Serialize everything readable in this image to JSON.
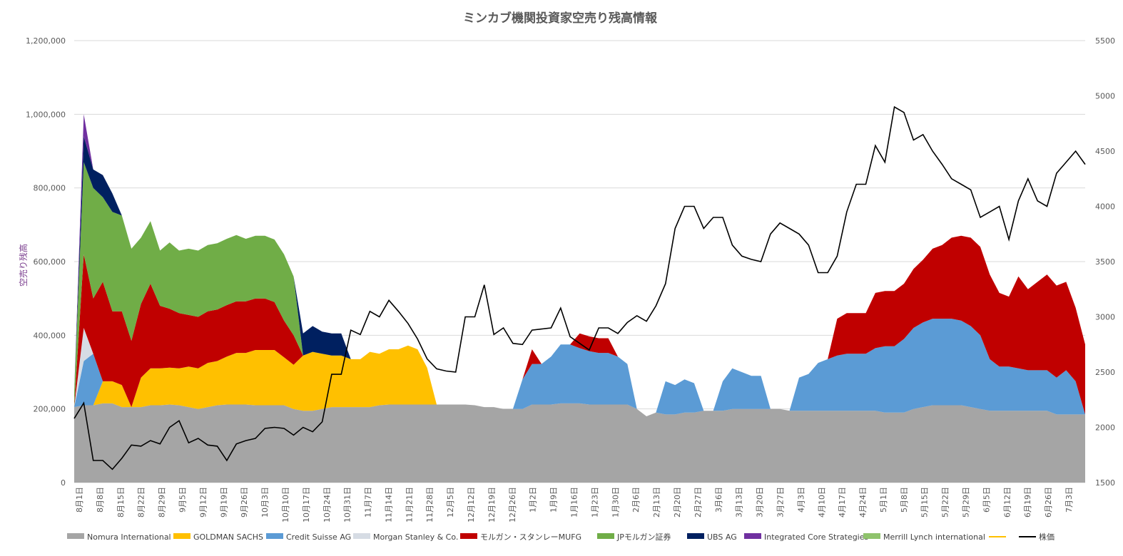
{
  "chart_data": {
    "type": "area",
    "title": "ミンカブ機関投資家空売り残高情報",
    "ylabel": "空売り残高",
    "y2label": "",
    "ylim": [
      0,
      1200000
    ],
    "y2lim": [
      1500,
      5500
    ],
    "yticks": [
      "0",
      "200,000",
      "400,000",
      "600,000",
      "800,000",
      "1,000,000",
      "1,200,000"
    ],
    "y2ticks": [
      "1500",
      "2000",
      "2500",
      "3000",
      "3500",
      "4000",
      "4500",
      "5000",
      "5500"
    ],
    "grid": true,
    "legend_position": "bottom",
    "x_tick_labels": [
      "8月1日",
      "8月8日",
      "8月15日",
      "8月22日",
      "8月29日",
      "9月5日",
      "9月12日",
      "9月19日",
      "9月26日",
      "10月3日",
      "10月10日",
      "10月17日",
      "10月24日",
      "10月31日",
      "11月7日",
      "11月14日",
      "11月21日",
      "11月28日",
      "12月5日",
      "12月12日",
      "12月19日",
      "12月26日",
      "1月2日",
      "1月9日",
      "1月16日",
      "1月23日",
      "1月30日",
      "2月6日",
      "2月13日",
      "2月20日",
      "2月27日",
      "3月6日",
      "3月13日",
      "3月20日",
      "3月27日",
      "4月3日",
      "4月10日",
      "4月17日",
      "4月24日",
      "5月1日",
      "5月8日",
      "5月15日",
      "5月22日",
      "5月29日",
      "6月5日",
      "6月12日",
      "6月19日",
      "6月26日",
      "7月3日"
    ],
    "series": [
      {
        "name": "Nomura International",
        "color": "#a5a5a5",
        "type": "area",
        "values": [
          205000,
          210000,
          210000,
          215000,
          215000,
          205000,
          205000,
          205000,
          210000,
          210000,
          212000,
          210000,
          205000,
          200000,
          205000,
          210000,
          212000,
          212000,
          212000,
          210000,
          210000,
          210000,
          210000,
          200000,
          195000,
          195000,
          200000,
          205000,
          205000,
          205000,
          205000,
          205000,
          210000,
          212000,
          212000,
          212000,
          212000,
          212000,
          212000,
          212000,
          212000,
          212000,
          210000,
          205000,
          205000,
          200000,
          200000,
          200000,
          212000,
          212000,
          212000,
          215000,
          215000,
          215000,
          212000,
          212000,
          212000,
          212000,
          212000,
          200000,
          180000,
          190000,
          185000,
          185000,
          190000,
          190000,
          195000,
          195000,
          195000,
          200000,
          200000,
          200000,
          200000,
          200000,
          200000,
          195000,
          195000,
          195000,
          195000,
          195000,
          195000,
          195000,
          195000,
          195000,
          195000,
          190000,
          190000,
          190000,
          200000,
          205000,
          210000,
          210000,
          210000,
          210000,
          205000,
          200000,
          195000,
          195000,
          195000,
          195000,
          195000,
          195000,
          195000,
          185000,
          185000,
          185000,
          185000
        ]
      },
      {
        "name": "GOLDMAN SACHS",
        "color": "#ffc000",
        "type": "area",
        "values": [
          0,
          0,
          0,
          60000,
          60000,
          60000,
          0,
          80000,
          100000,
          100000,
          100000,
          100000,
          110000,
          110000,
          120000,
          120000,
          130000,
          140000,
          140000,
          150000,
          150000,
          150000,
          130000,
          120000,
          150000,
          160000,
          150000,
          140000,
          140000,
          130000,
          130000,
          150000,
          140000,
          150000,
          150000,
          160000,
          150000,
          100000,
          0,
          0,
          0,
          0,
          0,
          0,
          0,
          0,
          0,
          0,
          0,
          0,
          0,
          0,
          0,
          0,
          0,
          0,
          0,
          0,
          0,
          0,
          0,
          0,
          0,
          0,
          0,
          0,
          0,
          0,
          0,
          0,
          0,
          0,
          0,
          0,
          0,
          0,
          0,
          0,
          0,
          0,
          0,
          0,
          0,
          0,
          0,
          0,
          0,
          0,
          0,
          0,
          0,
          0,
          0,
          0,
          0,
          0,
          0,
          0,
          0,
          0,
          0,
          0,
          0,
          0,
          0,
          0,
          0
        ]
      },
      {
        "name": "Credit Suisse AG",
        "color": "#5b9bd5",
        "type": "area",
        "values": [
          0,
          120000,
          140000,
          0,
          0,
          0,
          0,
          0,
          0,
          0,
          0,
          0,
          0,
          0,
          0,
          0,
          0,
          0,
          0,
          0,
          0,
          0,
          0,
          0,
          0,
          0,
          0,
          0,
          0,
          0,
          0,
          0,
          0,
          0,
          0,
          0,
          0,
          0,
          0,
          0,
          0,
          0,
          0,
          0,
          0,
          0,
          0,
          80000,
          110000,
          110000,
          130000,
          160000,
          160000,
          150000,
          145000,
          140000,
          140000,
          130000,
          110000,
          0,
          0,
          0,
          90000,
          80000,
          90000,
          80000,
          0,
          0,
          80000,
          110000,
          100000,
          90000,
          90000,
          0,
          0,
          0,
          90000,
          100000,
          130000,
          140000,
          150000,
          155000,
          155000,
          155000,
          170000,
          180000,
          180000,
          200000,
          220000,
          230000,
          235000,
          235000,
          235000,
          230000,
          220000,
          200000,
          140000,
          120000,
          120000,
          115000,
          110000,
          110000,
          110000,
          100000,
          120000,
          90000,
          0
        ]
      },
      {
        "name": "Morgan Stanley & Co.",
        "color": "#d6dce4",
        "type": "area",
        "values": [
          0,
          90000,
          0,
          0,
          0,
          0,
          0,
          0,
          0,
          0,
          0,
          0,
          0,
          0,
          0,
          0,
          0,
          0,
          0,
          0,
          0,
          0,
          0,
          0,
          0,
          0,
          0,
          0,
          0,
          0,
          0,
          0,
          0,
          0,
          0,
          0,
          0,
          0,
          0,
          0,
          0,
          0,
          0,
          0,
          0,
          0,
          0,
          0,
          0,
          0,
          0,
          0,
          0,
          0,
          0,
          0,
          0,
          0,
          0,
          0,
          0,
          0,
          0,
          0,
          0,
          0,
          0,
          0,
          0,
          0,
          0,
          0,
          0,
          0,
          0,
          0,
          0,
          0,
          0,
          0,
          0,
          0,
          0,
          0,
          0,
          0,
          0,
          0,
          0,
          0,
          0,
          0,
          0,
          0,
          0,
          0,
          0,
          0,
          0,
          0,
          0,
          0,
          0,
          0,
          0,
          0,
          0
        ]
      },
      {
        "name": "モルガン・スタンレーMUFG",
        "color": "#c00000",
        "type": "area",
        "values": [
          0,
          200000,
          150000,
          270000,
          190000,
          200000,
          180000,
          200000,
          230000,
          170000,
          160000,
          150000,
          140000,
          140000,
          140000,
          140000,
          140000,
          140000,
          140000,
          140000,
          140000,
          130000,
          100000,
          80000,
          0,
          0,
          0,
          0,
          0,
          0,
          0,
          0,
          0,
          0,
          0,
          0,
          0,
          0,
          0,
          0,
          0,
          0,
          0,
          0,
          0,
          0,
          0,
          0,
          40000,
          0,
          0,
          0,
          0,
          40000,
          40000,
          40000,
          40000,
          0,
          0,
          0,
          0,
          0,
          0,
          0,
          0,
          0,
          0,
          0,
          0,
          0,
          0,
          0,
          0,
          0,
          0,
          0,
          0,
          0,
          0,
          0,
          100000,
          110000,
          110000,
          110000,
          150000,
          150000,
          150000,
          150000,
          160000,
          170000,
          190000,
          200000,
          220000,
          230000,
          240000,
          240000,
          230000,
          200000,
          190000,
          250000,
          220000,
          240000,
          260000,
          250000,
          240000,
          200000,
          190000
        ]
      },
      {
        "name": "JPモルガン証券",
        "color": "#70ad47",
        "type": "area",
        "values": [
          40000,
          250000,
          300000,
          230000,
          270000,
          260000,
          250000,
          180000,
          170000,
          150000,
          180000,
          170000,
          180000,
          180000,
          180000,
          180000,
          180000,
          180000,
          170000,
          170000,
          170000,
          170000,
          180000,
          160000,
          0,
          0,
          0,
          0,
          0,
          0,
          0,
          0,
          0,
          0,
          0,
          0,
          0,
          0,
          0,
          0,
          0,
          0,
          0,
          0,
          0,
          0,
          0,
          0,
          0,
          0,
          0,
          0,
          0,
          0,
          0,
          0,
          0,
          0,
          0,
          0,
          0,
          0,
          0,
          0,
          0,
          0,
          0,
          0,
          0,
          0,
          0,
          0,
          0,
          0,
          0,
          0,
          0,
          0,
          0,
          0,
          0,
          0,
          0,
          0,
          0,
          0,
          0,
          0,
          0,
          0,
          0,
          0,
          0,
          0,
          0,
          0,
          0,
          0,
          0,
          0,
          0,
          0,
          0,
          0,
          0,
          0,
          0
        ]
      },
      {
        "name": "UBS AG",
        "color": "#002060",
        "type": "area",
        "values": [
          0,
          70000,
          50000,
          60000,
          50000,
          0,
          0,
          0,
          0,
          0,
          0,
          0,
          0,
          0,
          0,
          0,
          0,
          0,
          0,
          0,
          0,
          0,
          0,
          0,
          60000,
          70000,
          60000,
          60000,
          60000,
          0,
          0,
          0,
          0,
          0,
          0,
          0,
          0,
          0,
          0,
          0,
          0,
          0,
          0,
          0,
          0,
          0,
          0,
          0,
          0,
          0,
          0,
          0,
          0,
          0,
          0,
          0,
          0,
          0,
          0,
          0,
          0,
          0,
          0,
          0,
          0,
          0,
          0,
          0,
          0,
          0,
          0,
          0,
          0,
          0,
          0,
          0,
          0,
          0,
          0,
          0,
          0,
          0,
          0,
          0,
          0,
          0,
          0,
          0,
          0,
          0,
          0,
          0,
          0,
          0,
          0,
          0,
          0,
          0,
          0,
          0,
          0,
          0,
          0,
          0,
          0,
          0,
          0
        ]
      },
      {
        "name": "Integrated Core Strategies",
        "color": "#7030a0",
        "type": "area",
        "values": [
          0,
          60000,
          0,
          0,
          0,
          0,
          0,
          0,
          0,
          0,
          0,
          0,
          0,
          0,
          0,
          0,
          0,
          0,
          0,
          0,
          0,
          0,
          0,
          0,
          0,
          0,
          0,
          0,
          0,
          0,
          0,
          0,
          0,
          0,
          0,
          0,
          0,
          0,
          0,
          0,
          0,
          0,
          0,
          0,
          0,
          0,
          0,
          0,
          0,
          0,
          0,
          0,
          0,
          0,
          0,
          0,
          0,
          0,
          0,
          0,
          0,
          0,
          0,
          0,
          0,
          0,
          0,
          0,
          0,
          0,
          0,
          0,
          0,
          0,
          0,
          0,
          0,
          0,
          0,
          0,
          0,
          0,
          0,
          0,
          0,
          0,
          0,
          0,
          0,
          0,
          0,
          0,
          0,
          0,
          0,
          0,
          0,
          0,
          0,
          0,
          0,
          0,
          0,
          0,
          0,
          0,
          0
        ]
      },
      {
        "name": "Merrill Lynch international",
        "color": "#8fc36c",
        "type": "area",
        "values": [
          0,
          0,
          0,
          0,
          0,
          0,
          0,
          0,
          0,
          0,
          0,
          0,
          0,
          0,
          0,
          0,
          0,
          0,
          0,
          0,
          0,
          0,
          0,
          0,
          0,
          0,
          0,
          0,
          0,
          0,
          0,
          0,
          0,
          0,
          0,
          0,
          0,
          0,
          0,
          0,
          0,
          0,
          0,
          0,
          0,
          0,
          0,
          0,
          0,
          0,
          0,
          0,
          0,
          0,
          0,
          0,
          0,
          0,
          0,
          0,
          0,
          0,
          0,
          0,
          0,
          0,
          0,
          0,
          0,
          0,
          0,
          0,
          0,
          0,
          0,
          0,
          0,
          0,
          0,
          0,
          0,
          0,
          0,
          0,
          0,
          0,
          0,
          0,
          0,
          0,
          0,
          0,
          0,
          0,
          0,
          0,
          0,
          0,
          0,
          0,
          0,
          0,
          0,
          0,
          0,
          0,
          0
        ]
      },
      {
        "name": "",
        "color": "#ffc000",
        "type": "line-legend-only"
      },
      {
        "name": "株価",
        "color": "#000000",
        "type": "line",
        "axis": "right",
        "values": [
          2080,
          2220,
          1700,
          1700,
          1620,
          1720,
          1840,
          1830,
          1880,
          1850,
          2000,
          2060,
          1860,
          1900,
          1840,
          1830,
          1700,
          1850,
          1880,
          1900,
          1990,
          2000,
          1990,
          1930,
          2000,
          1960,
          2050,
          2480,
          2480,
          2880,
          2840,
          3050,
          3000,
          3150,
          3050,
          2940,
          2800,
          2620,
          2530,
          2510,
          2500,
          3000,
          3000,
          3290,
          2840,
          2900,
          2760,
          2750,
          2880,
          2890,
          2900,
          3080,
          2820,
          2760,
          2700,
          2900,
          2900,
          2850,
          2950,
          3010,
          2960,
          3100,
          3300,
          3800,
          4000,
          4000,
          3800,
          3900,
          3900,
          3650,
          3550,
          3520,
          3500,
          3750,
          3850,
          3800,
          3750,
          3650,
          3400,
          3400,
          3550,
          3950,
          4200,
          4200,
          4550,
          4400,
          4900,
          4850,
          4600,
          4650,
          4500,
          4380,
          4250,
          4200,
          4150,
          3900,
          3950,
          4000,
          3700,
          4050,
          4250,
          4050,
          4000,
          4300,
          4400,
          4500,
          4380
        ]
      }
    ]
  }
}
